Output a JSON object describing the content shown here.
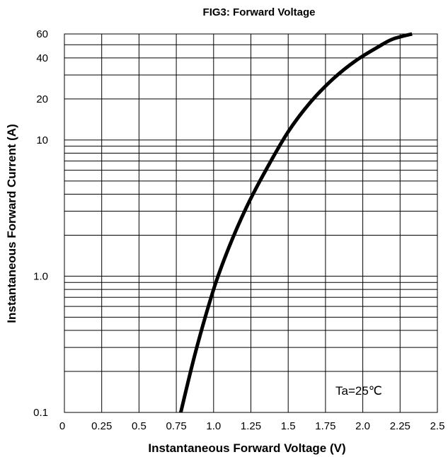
{
  "chart_data": {
    "type": "line",
    "title": "FIG3: Forward Voltage",
    "xlabel": "Instantaneous Forward Voltage (V)",
    "ylabel": "Instantaneous Forward Current (A)",
    "x_scale": "linear",
    "y_scale": "log",
    "xlim": [
      0,
      2.5
    ],
    "ylim": [
      0.1,
      60
    ],
    "x_ticks": [
      {
        "value": 0,
        "label": "0"
      },
      {
        "value": 0.25,
        "label": "0.25"
      },
      {
        "value": 0.5,
        "label": "0.5"
      },
      {
        "value": 0.75,
        "label": "0.75"
      },
      {
        "value": 1.0,
        "label": "1.0"
      },
      {
        "value": 1.25,
        "label": "1.25"
      },
      {
        "value": 1.5,
        "label": "1.5"
      },
      {
        "value": 1.75,
        "label": "1.75"
      },
      {
        "value": 2.0,
        "label": "2.0"
      },
      {
        "value": 2.25,
        "label": "2.25"
      },
      {
        "value": 2.5,
        "label": "2.5"
      }
    ],
    "y_ticks": [
      {
        "value": 0.1,
        "label": "0.1"
      },
      {
        "value": 1.0,
        "label": "1.0"
      },
      {
        "value": 10,
        "label": "10"
      },
      {
        "value": 20,
        "label": "20"
      },
      {
        "value": 40,
        "label": "40"
      },
      {
        "value": 60,
        "label": "60"
      }
    ],
    "y_grid": [
      0.2,
      0.3,
      0.4,
      0.5,
      0.6,
      0.7,
      0.8,
      0.9,
      1,
      2,
      3,
      4,
      5,
      6,
      7,
      8,
      9,
      10,
      20,
      30,
      40,
      50
    ],
    "grid": true,
    "annotation": "Ta=25℃",
    "series": [
      {
        "x": [
          0.78,
          0.88,
          1.0,
          1.1,
          1.22,
          1.35,
          1.5,
          1.65,
          1.8,
          1.95,
          2.1,
          2.2,
          2.33
        ],
        "y": [
          0.1,
          0.28,
          0.8,
          1.6,
          3.2,
          6.0,
          11.5,
          19.0,
          28.0,
          38.0,
          48.0,
          55.0,
          60.0
        ],
        "color": "#000000"
      }
    ]
  }
}
